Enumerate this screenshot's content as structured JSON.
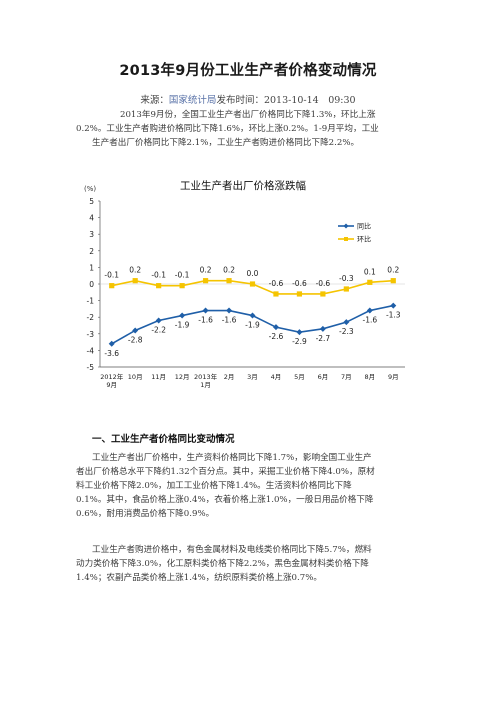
{
  "header": {
    "title": "2013年9月份工业生产者价格变动情况",
    "source_label": "来源：",
    "source_org": "国家统计局",
    "time_label": "发布时间：2013-10-14　09:30"
  },
  "intro": {
    "lines": [
      "2013年9月份，全国工业生产者出厂价格同比下降1.3%，环比上涨",
      "0.2%。工业生产者购进价格同比下降1.6%，环比上涨0.2%。1-9月平均，工业",
      "生产者出厂价格同比下降2.1%，工业生产者购进价格同比下降2.2%。"
    ]
  },
  "chart_data": {
    "type": "line",
    "title": "工业生产者出厂价格涨跌幅",
    "ylabel": "(%)",
    "ylim": [
      -5,
      5
    ],
    "yticks": [
      "5",
      "4",
      "3",
      "2",
      "1",
      "0",
      "-1",
      "-2",
      "-3",
      "-4",
      "-5"
    ],
    "categories": [
      "2012年9月",
      "10月",
      "11月",
      "12月",
      "2013年1月",
      "2月",
      "3月",
      "4月",
      "5月",
      "6月",
      "7月",
      "8月",
      "9月"
    ],
    "tick_labels": [
      [
        "2012年",
        "9月"
      ],
      [
        "10月"
      ],
      [
        "11月"
      ],
      [
        "12月"
      ],
      [
        "2013年",
        "1月"
      ],
      [
        "2月"
      ],
      [
        "3月"
      ],
      [
        "4月"
      ],
      [
        "5月"
      ],
      [
        "6月"
      ],
      [
        "7月"
      ],
      [
        "8月"
      ],
      [
        "9月"
      ]
    ],
    "series": [
      {
        "name": "同比",
        "color": "#1f5fa8",
        "marker": "diamond",
        "values": [
          -3.6,
          -2.8,
          -2.2,
          -1.9,
          -1.6,
          -1.6,
          -1.9,
          -2.6,
          -2.9,
          -2.7,
          -2.3,
          -1.6,
          -1.3
        ],
        "labels": [
          "-3.6",
          "-2.8",
          "-2.2",
          "-1.9",
          "-1.6",
          "-1.6",
          "-1.9",
          "-2.6",
          "-2.9",
          "-2.7",
          "-2.3",
          "-1.6",
          "-1.3"
        ]
      },
      {
        "name": "环比",
        "color": "#f5c400",
        "marker": "square",
        "values": [
          -0.1,
          0.2,
          -0.1,
          -0.1,
          0.2,
          0.2,
          0.0,
          -0.6,
          -0.6,
          -0.6,
          -0.3,
          0.1,
          0.2
        ],
        "labels": [
          "-0.1",
          "0.2",
          "-0.1",
          "-0.1",
          "0.2",
          "0.2",
          "0.0",
          "-0.6",
          "-0.6",
          "-0.6",
          "-0.3",
          "0.1",
          "0.2"
        ]
      }
    ],
    "grid": false,
    "legend": "right"
  },
  "section1": {
    "heading": "一、工业生产者价格同比变动情况",
    "para1": [
      "工业生产者出厂价格中，生产资料价格同比下降1.7%，影响全国工业生产",
      "者出厂价格总水平下降约1.32个百分点。其中，采掘工业价格下降4.0%，原材",
      "料工业价格下降2.0%，加工工业价格下降1.4%。生活资料价格同比下降",
      "0.1%。其中，食品价格上涨0.4%，衣着价格上涨1.0%，一般日用品价格下降",
      "0.6%，耐用消费品价格下降0.9%。"
    ],
    "para2": [
      "工业生产者购进价格中，有色金属材料及电线类价格同比下降5.7%，燃料",
      "动力类价格下降3.0%，化工原料类价格下降2.2%，黑色金属材料类价格下降",
      "1.4%；农副产品类价格上涨1.4%，纺织原料类价格上涨0.7%。"
    ]
  }
}
